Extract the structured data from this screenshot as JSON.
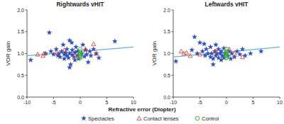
{
  "chart_data": [
    {
      "type": "scatter",
      "title": "Rightwards vHIT",
      "y_label": "VOR gain",
      "x_label": "Refractive error (Diopter)",
      "legend": "bottom",
      "xlim": [
        -10,
        10
      ],
      "xticks": [
        -10,
        -5,
        0,
        5,
        10
      ],
      "ylim": [
        0,
        2
      ],
      "yticks": [
        {
          "value": 0,
          "label": "0.0"
        },
        0.5,
        {
          "value": 1,
          "label": "1.0"
        },
        1.5,
        {
          "value": 2,
          "label": "2.0"
        }
      ],
      "series": [
        {
          "name": "Spectacles",
          "color": "#2f4fb5",
          "marker": "star",
          "type": "scatter",
          "x": [
            -9.3,
            -5.8,
            -5.5,
            -5,
            -4.5,
            -4.2,
            -4,
            -3.8,
            -3.5,
            -3.2,
            -3,
            -3,
            -2.8,
            -2.5,
            -2.5,
            -2.2,
            -2,
            -2,
            -1.8,
            -1.5,
            -1.5,
            -1.2,
            -1,
            -1,
            -0.8,
            -0.5,
            -0.5,
            -0.3,
            0.3,
            0.5,
            0.8,
            1,
            1.2,
            1.5,
            1.8,
            2,
            2.5,
            3,
            3.5,
            6.5,
            -2,
            -6.5,
            -1.6
          ],
          "values": [
            0.85,
            1.48,
            1.05,
            0.98,
            1.1,
            0.95,
            1.0,
            0.92,
            1.05,
            1.2,
            0.98,
            0.88,
            1.02,
            0.95,
            1.1,
            0.9,
            1.3,
            1.0,
            0.75,
            0.97,
            1.08,
            0.92,
            1.02,
            0.85,
            1.15,
            0.95,
            1.05,
            0.88,
            1.0,
            1.2,
            0.93,
            1.08,
            0.98,
            0.8,
            1.05,
            0.95,
            1.1,
            1.0,
            0.9,
            1.28,
            0.68,
            1.0,
            1.25
          ]
        },
        {
          "name": "Contact lenses",
          "color": "#e5413a",
          "marker": "triangle",
          "type": "scatter",
          "x": [
            -8,
            -7,
            -6.8,
            -4.5,
            -3,
            -1,
            1,
            2.5,
            3
          ],
          "values": [
            0.98,
            0.95,
            1.0,
            1.02,
            1.08,
            0.95,
            1.1,
            1.22,
            1.0
          ]
        },
        {
          "name": "Control",
          "color": "#38a832",
          "marker": "circle",
          "type": "scatter",
          "x": [
            0,
            0,
            0,
            0,
            0,
            0,
            0,
            0
          ],
          "values": [
            0.9,
            0.95,
            1.0,
            1.0,
            1.05,
            1.1,
            0.93,
            0.97
          ]
        },
        {
          "type": "line",
          "color": "#5fb3e0",
          "x": [
            -10,
            10
          ],
          "values": [
            0.95,
            1.15
          ]
        }
      ]
    },
    {
      "type": "scatter",
      "title": "Leftwards vHIT",
      "y_label": "VOR gain",
      "xlim": [
        -10,
        10
      ],
      "xticks": [
        -10,
        -5,
        0,
        5,
        10
      ],
      "ylim": [
        0,
        2
      ],
      "yticks": [
        {
          "value": 0,
          "label": "0.0"
        },
        0.5,
        {
          "value": 1,
          "label": "1.0"
        },
        1.5,
        {
          "value": 2,
          "label": "2.0"
        }
      ],
      "series": [
        {
          "color": "#2f4fb5",
          "marker": "star",
          "type": "scatter",
          "x": [
            -9.5,
            -6,
            -5.5,
            -5,
            -4.5,
            -4,
            -3.8,
            -3.5,
            -3,
            -3,
            -2.8,
            -2.5,
            -2.2,
            -2,
            -2,
            -1.8,
            -1.5,
            -1.5,
            -1.2,
            -1,
            -1,
            -0.8,
            -0.5,
            -0.5,
            -0.3,
            0.3,
            0.5,
            0.8,
            1,
            1.5,
            2,
            2.5,
            3,
            3.5,
            4.5,
            6.5,
            -2.5,
            -6.5,
            -4.2
          ],
          "values": [
            0.82,
            1.38,
            1.0,
            1.25,
            1.05,
            0.95,
            1.1,
            1.0,
            0.92,
            1.15,
            1.0,
            0.88,
            1.05,
            0.95,
            1.2,
            1.0,
            0.9,
            1.1,
            1.0,
            0.85,
            1.05,
            0.95,
            1.12,
            0.9,
            1.0,
            0.95,
            1.05,
            0.88,
            1.0,
            0.92,
            1.05,
            0.98,
            1.1,
            0.95,
            1.0,
            1.05,
            0.75,
            1.08,
            1.22
          ]
        },
        {
          "color": "#e5413a",
          "marker": "triangle",
          "type": "scatter",
          "x": [
            -8.5,
            -8,
            -7.5,
            -6.8,
            -5,
            -2,
            0.5,
            1.5,
            3
          ],
          "values": [
            1.05,
            1.0,
            1.02,
            0.95,
            0.98,
            1.05,
            1.1,
            1.0,
            0.92
          ]
        },
        {
          "color": "#38a832",
          "marker": "circle",
          "type": "scatter",
          "x": [
            0,
            0,
            0,
            0,
            0,
            0,
            0,
            0
          ],
          "values": [
            0.95,
            1.0,
            1.02,
            1.05,
            0.9,
            0.97,
            1.1,
            0.92
          ]
        },
        {
          "type": "line",
          "color": "#5fb3e0",
          "x": [
            -10,
            10
          ],
          "values": [
            0.92,
            1.15
          ]
        }
      ]
    }
  ]
}
